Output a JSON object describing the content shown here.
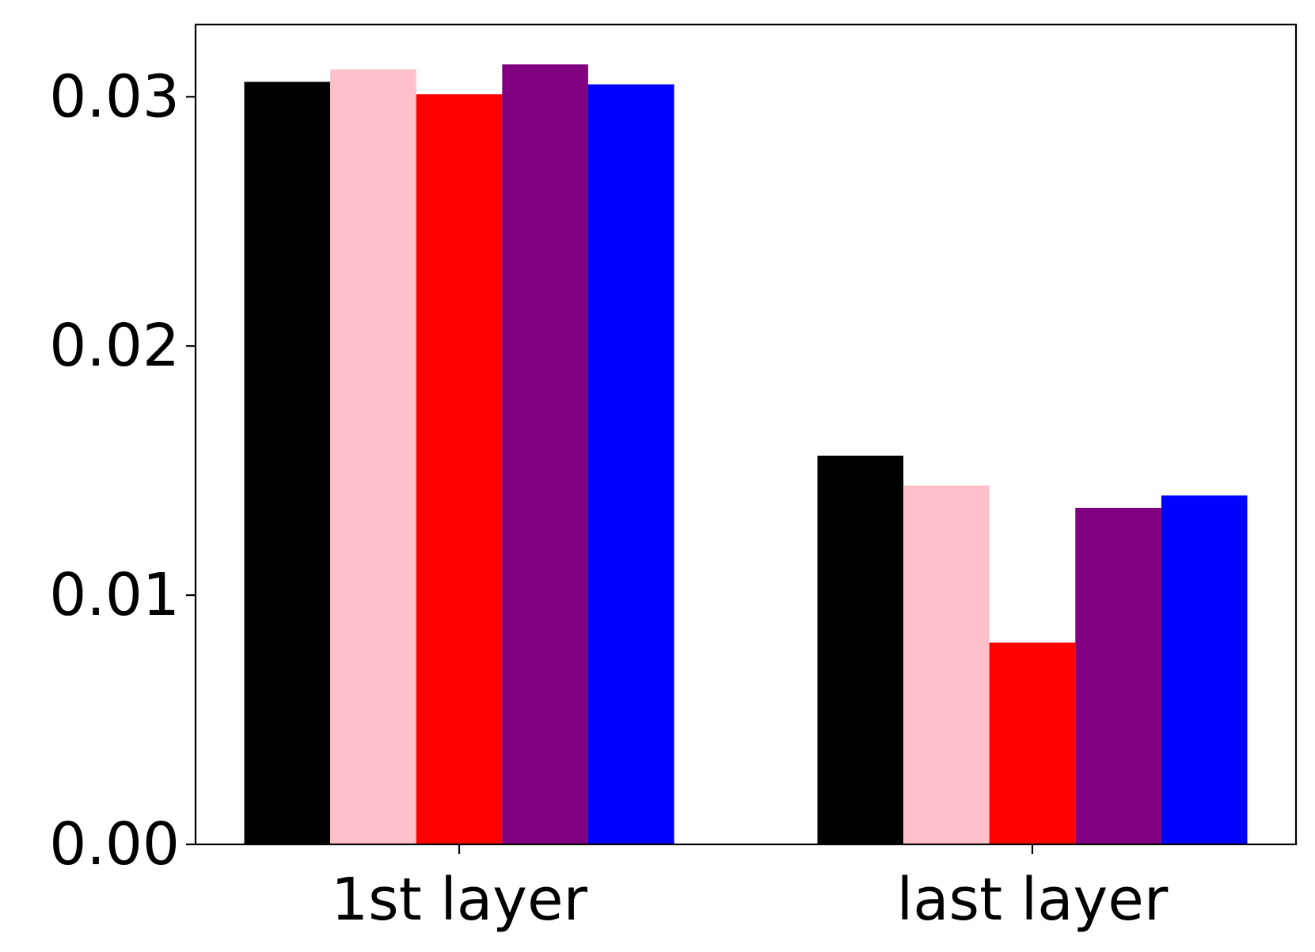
{
  "chart_data": {
    "type": "bar",
    "categories": [
      "1st layer",
      "last layer"
    ],
    "series": [
      {
        "color": "#000000",
        "values": [
          0.0306,
          0.0156
        ]
      },
      {
        "color": "#ffc0cb",
        "values": [
          0.0311,
          0.0144
        ]
      },
      {
        "color": "#ff0000",
        "values": [
          0.0301,
          0.0081
        ]
      },
      {
        "color": "#800080",
        "values": [
          0.0313,
          0.0135
        ]
      },
      {
        "color": "#0000ff",
        "values": [
          0.0305,
          0.014
        ]
      }
    ],
    "yticks": [
      0.0,
      0.01,
      0.02,
      0.03
    ],
    "ytick_labels": [
      "0.00",
      "0.01",
      "0.02",
      "0.03"
    ],
    "ylim": [
      0,
      0.0329
    ],
    "grid": false,
    "legend": false
  }
}
